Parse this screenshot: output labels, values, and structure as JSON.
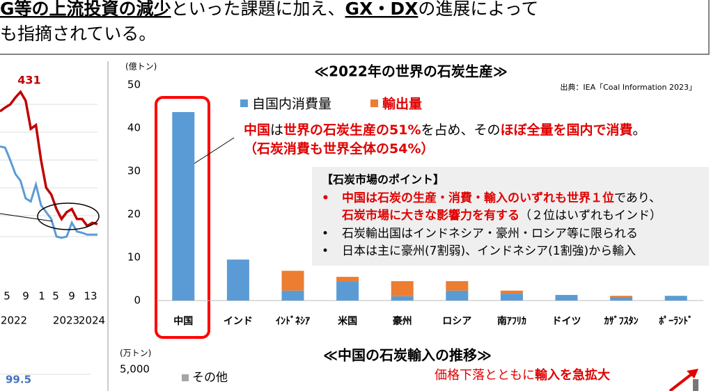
{
  "header": {
    "line1": [
      "G等の上流投資の減少",
      "といった課題に加え、",
      "GX・DX",
      "の進展によって"
    ],
    "line2": [
      "も指摘されている。"
    ]
  },
  "chart_data": [
    {
      "type": "stacked-bar",
      "title": "≪2022年の世界の石炭生産≫",
      "y_label": "(億トン)",
      "source": "出典：IEA「Coal Information 2023」",
      "categories": [
        "中国",
        "インド",
        "ｲﾝﾄﾞﾈｼｱ",
        "米国",
        "豪州",
        "ロシア",
        "南ｱﾌﾘｶ",
        "ドイツ",
        "ｶｻﾞﾌｽﾀﾝ",
        "ﾎﾟｰﾗﾝﾄﾞ"
      ],
      "series": [
        {
          "name": "自国内消費量",
          "color": "#5b9bd5",
          "values": [
            43.7,
            9.5,
            2.3,
            4.5,
            1.0,
            2.3,
            1.6,
            1.3,
            0.8,
            1.1
          ]
        },
        {
          "name": "輸出量",
          "color": "#ed7d31",
          "values": [
            0,
            0,
            4.6,
            1.0,
            3.5,
            2.2,
            0.7,
            0,
            0.3,
            0
          ]
        }
      ],
      "ylim": [
        0,
        50
      ],
      "yticks": [
        0,
        10,
        20,
        30,
        40,
        50
      ],
      "annotation": {
        "line1": [
          "中国",
          "は",
          "世界の石炭生産の51%",
          "を占め、その",
          "ほぼ全量を国内で消費",
          "。"
        ],
        "line2": [
          "（石炭消費も世界全体の54%）"
        ]
      },
      "box": {
        "title": "【石炭市場のポイント】",
        "bullet1": {
          "line1": [
            "中国は石炭の生産・消費・輸入のいずれも世界１位",
            "であり、"
          ],
          "line2": [
            "石炭市場に大きな影響力を有する",
            "（２位はいずれもインド）"
          ]
        },
        "bullet2": "石炭輸出国はインドネシア・豪州・ロシア等に限られる",
        "bullet3": "日本は主に豪州(7割弱)、インドネシア(1割強)から輸入"
      }
    },
    {
      "type": "line",
      "annotation": "431",
      "xticks": [
        "5",
        "9",
        "1",
        "5",
        "9",
        "13"
      ],
      "years": [
        "2022",
        "2023",
        "2024"
      ],
      "ylim": [
        100,
        450
      ],
      "series": [
        {
          "color": "#c00000",
          "values": [
            400,
            406,
            411,
            422,
            431,
            417,
            372,
            378,
            322,
            278,
            267,
            244,
            228,
            239,
            244,
            228,
            228,
            217,
            222,
            220
          ]
        },
        {
          "color": "#5b9bd5",
          "values": [
            344,
            342,
            322,
            300,
            289,
            261,
            256,
            283,
            250,
            239,
            228,
            200,
            198,
            200,
            222,
            208,
            206,
            203,
            203,
            203
          ]
        }
      ],
      "value_label": "99.5"
    },
    {
      "type": "bar",
      "title": "≪中国の石炭輸入の推移≫",
      "y_label": "(万トン)",
      "yticks": [
        {
          "value": 5000,
          "label": "5,000"
        }
      ],
      "legend": [
        "その他"
      ],
      "annotation": [
        "価格下落とともに",
        "輸入を急拡大"
      ]
    }
  ]
}
